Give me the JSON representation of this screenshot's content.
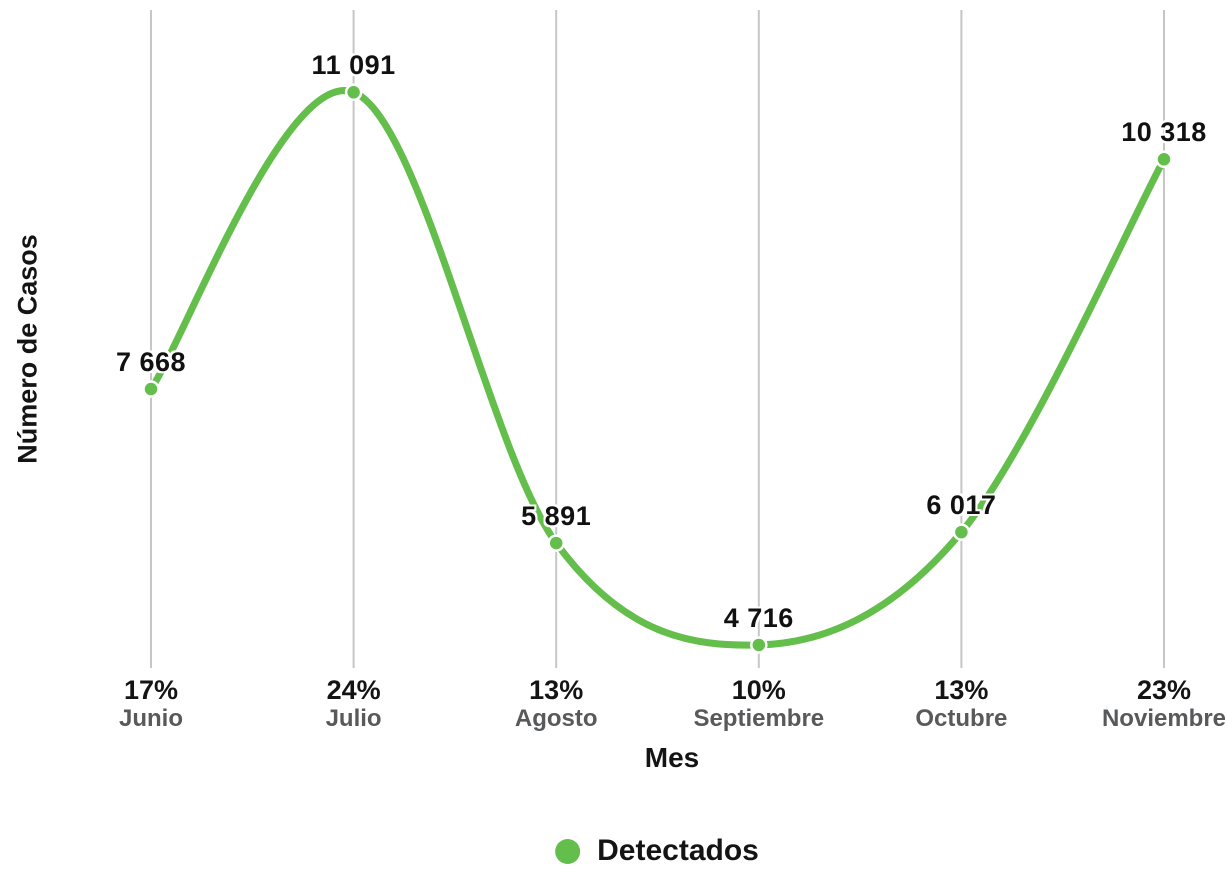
{
  "chart_data": {
    "type": "line",
    "smooth": true,
    "title": "",
    "xlabel": "Mes",
    "ylabel": "Número de Casos",
    "categories": [
      "Junio",
      "Julio",
      "Agosto",
      "Septiembre",
      "Octubre",
      "Noviembre"
    ],
    "x_tick_percents": [
      "17%",
      "24%",
      "13%",
      "10%",
      "13%",
      "23%"
    ],
    "series": [
      {
        "name": "Detectados",
        "values": [
          7668,
          11091,
          5891,
          4716,
          6017,
          10318
        ],
        "value_labels": [
          "7 668",
          "11 091",
          "5 891",
          "4 716",
          "6 017",
          "10 318"
        ]
      }
    ],
    "ylim": [
      4450,
      12040
    ],
    "grid": "vertical-gridlines-only",
    "legend_position": "bottom-center",
    "colors": {
      "series_green": "#64be4b",
      "gridline_gray": "#c6c6c6",
      "label_black": "#141414",
      "month_gray": "#58595b",
      "background": "#ffffff"
    }
  }
}
